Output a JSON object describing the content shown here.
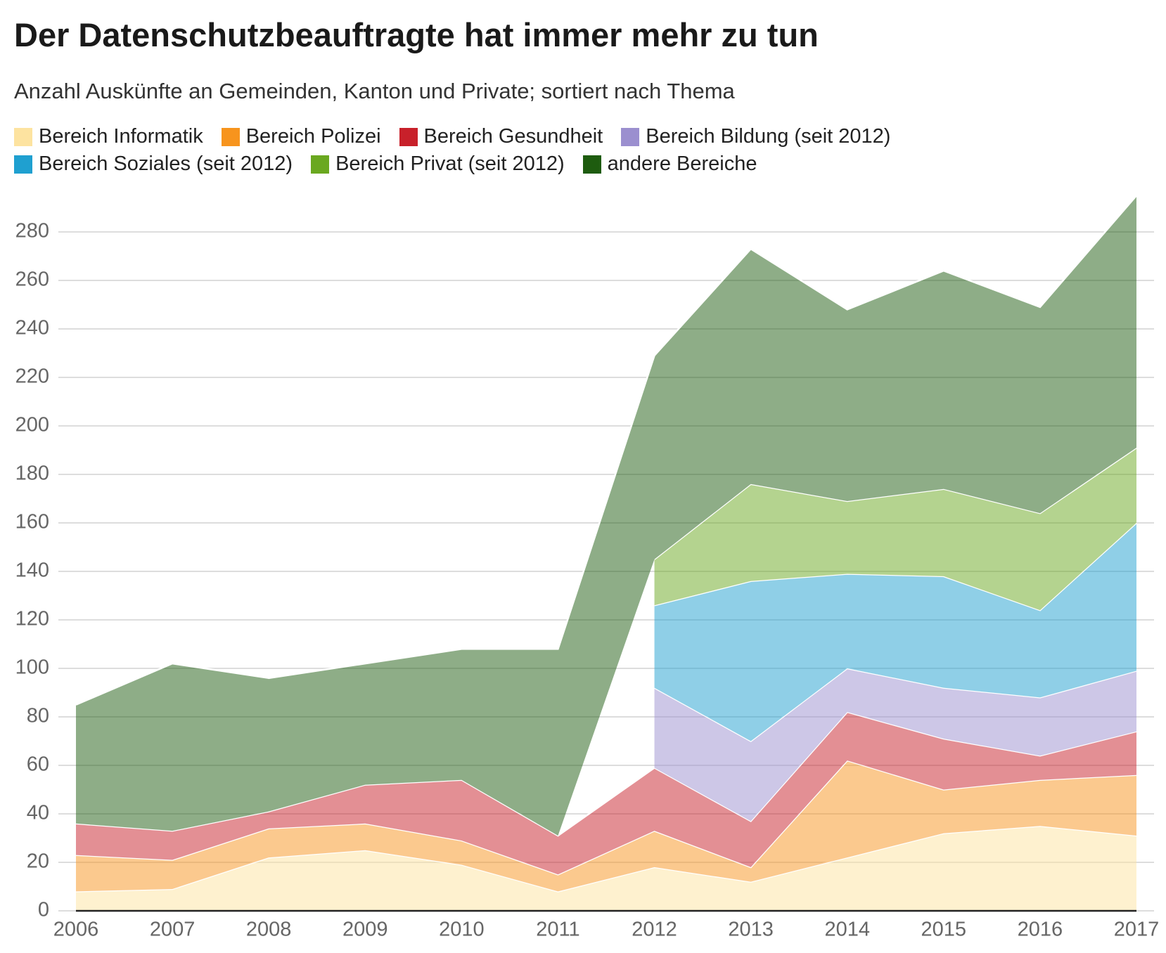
{
  "chart_data": {
    "type": "stacked_area",
    "title": "Der Datenschutzbeauftragte hat immer mehr zu tun",
    "subtitle": "Anzahl Auskünfte an Gemeinden, Kanton und Private; sortiert nach Thema",
    "categories": [
      "2006",
      "2007",
      "2008",
      "2009",
      "2010",
      "2011",
      "2012",
      "2013",
      "2014",
      "2015",
      "2016",
      "2017"
    ],
    "series": [
      {
        "name": "Bereich Informatik",
        "color": "#fde3a0",
        "values": [
          8,
          9,
          22,
          25,
          19,
          8,
          18,
          12,
          22,
          32,
          35,
          31
        ]
      },
      {
        "name": "Bereich Polizei",
        "color": "#f7941d",
        "values": [
          15,
          12,
          12,
          11,
          10,
          7,
          15,
          6,
          40,
          18,
          19,
          25
        ]
      },
      {
        "name": "Bereich Gesundheit",
        "color": "#c8202a",
        "values": [
          13,
          12,
          7,
          16,
          25,
          16,
          26,
          19,
          20,
          21,
          10,
          18
        ]
      },
      {
        "name": "Bereich Bildung (seit 2012)",
        "color": "#9b8fcf",
        "values": [
          null,
          null,
          null,
          null,
          null,
          null,
          33,
          33,
          18,
          21,
          24,
          25
        ]
      },
      {
        "name": "Bereich Soziales (seit 2012)",
        "color": "#1fa0d0",
        "values": [
          null,
          null,
          null,
          null,
          null,
          null,
          34,
          66,
          39,
          46,
          36,
          61
        ]
      },
      {
        "name": "Bereich Privat (seit 2012)",
        "color": "#6aa820",
        "values": [
          null,
          null,
          null,
          null,
          null,
          null,
          19,
          40,
          30,
          36,
          40,
          31
        ]
      },
      {
        "name": "andere Bereiche",
        "color": "#1e5c0f",
        "values": [
          49,
          69,
          55,
          50,
          54,
          77,
          84,
          97,
          79,
          90,
          85,
          104
        ]
      }
    ],
    "ylim": [
      0,
      300
    ],
    "yticks": [
      0,
      20,
      40,
      60,
      80,
      100,
      120,
      140,
      160,
      180,
      200,
      220,
      240,
      260,
      280
    ],
    "grid": true
  }
}
